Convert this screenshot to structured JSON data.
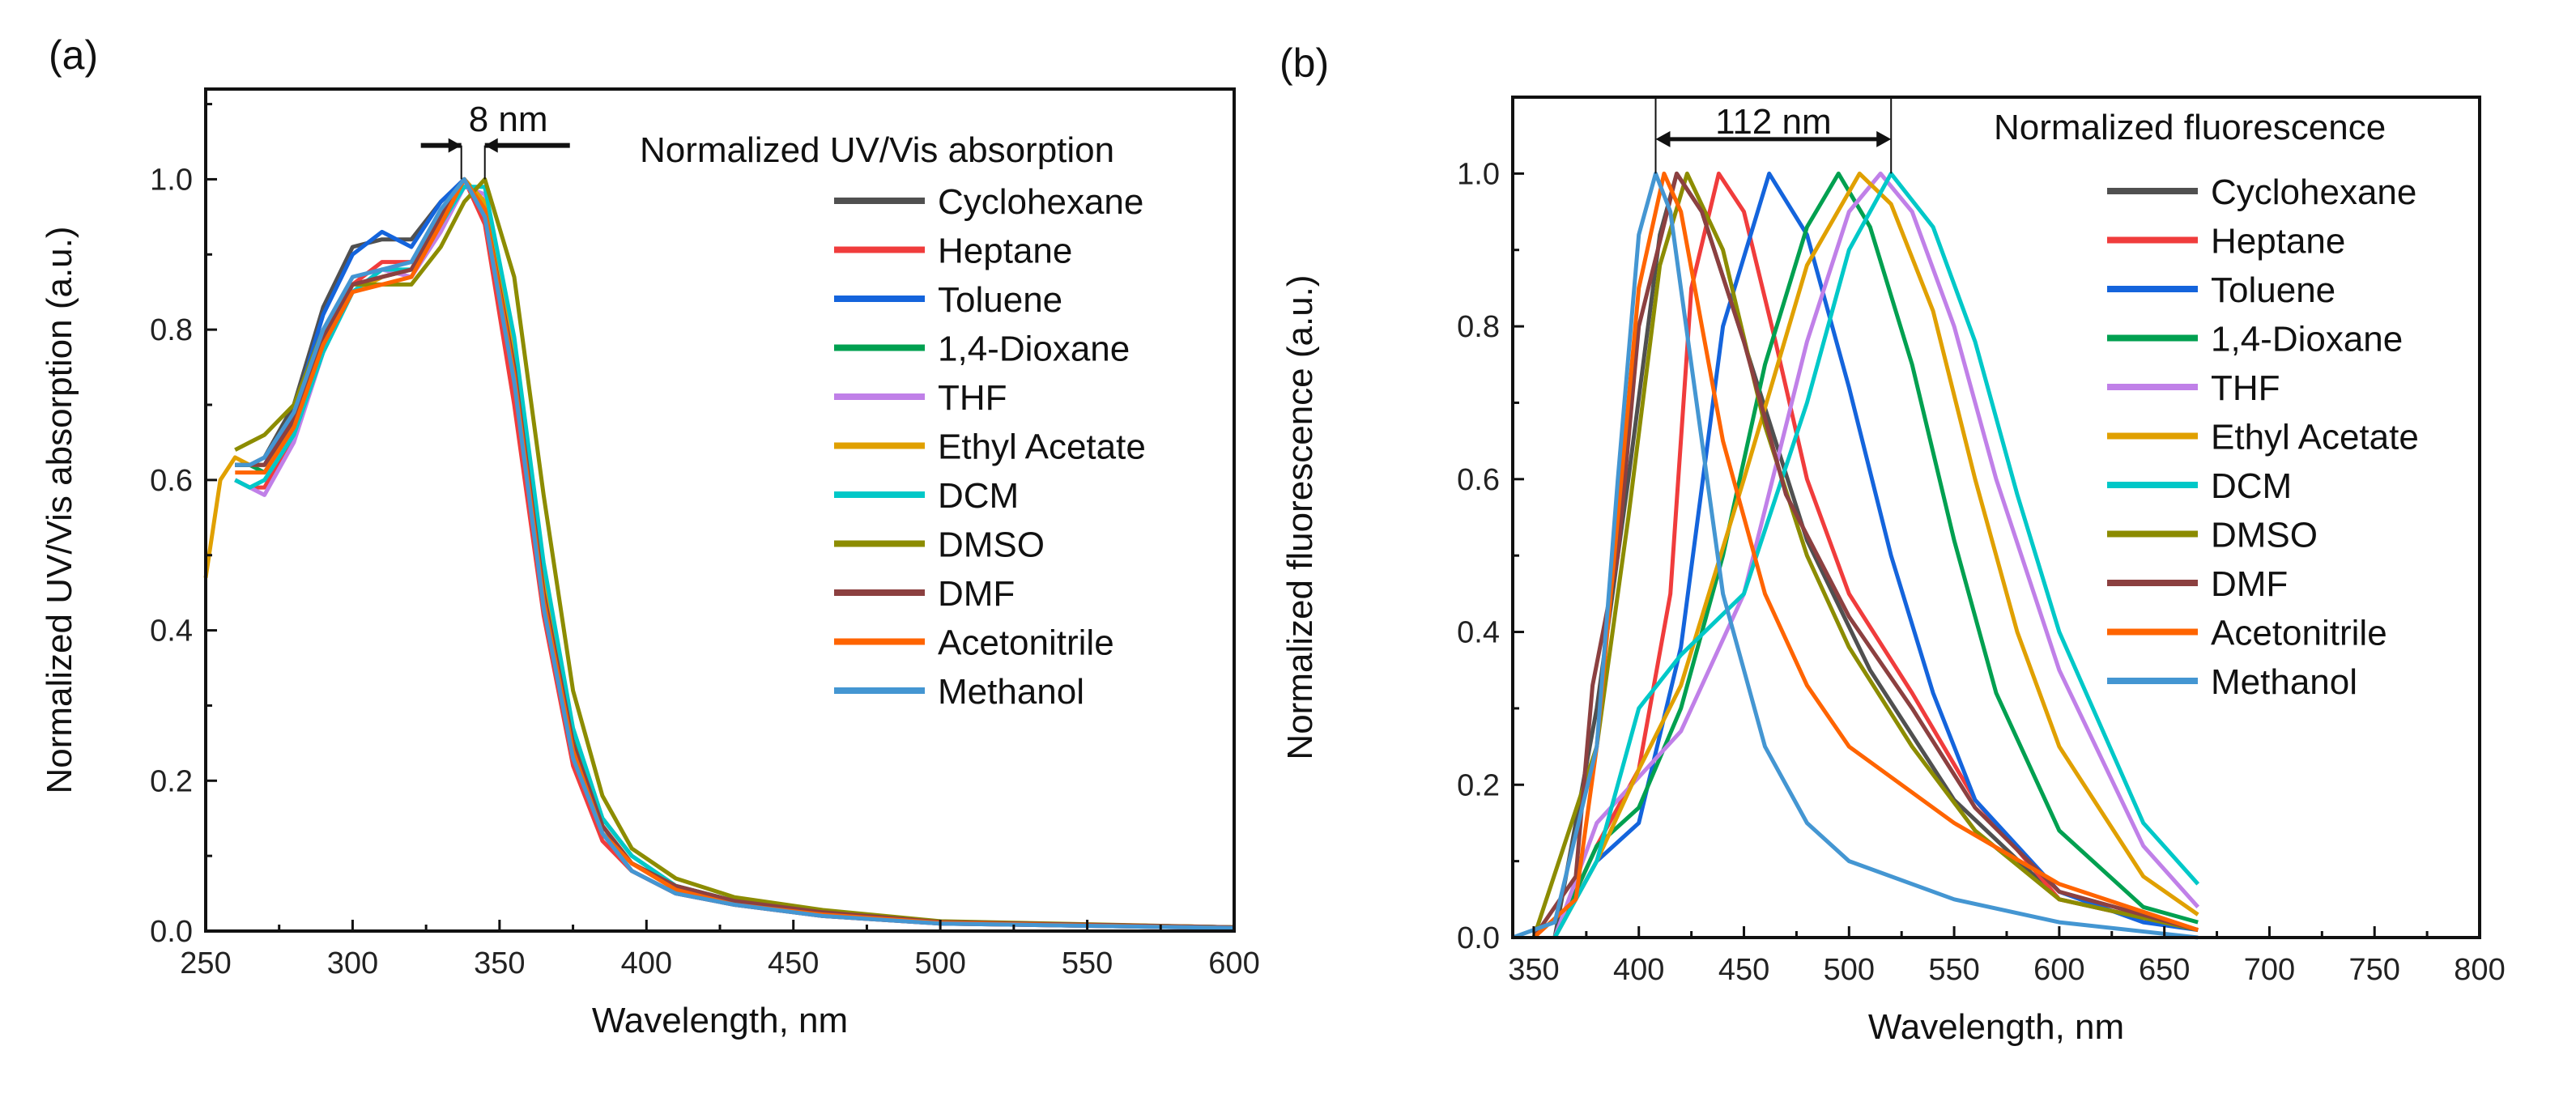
{
  "chart_data": [
    {
      "type": "line",
      "panel_label": "(a)",
      "title": "Normalized UV/Vis absorption",
      "xlabel": "Wavelength, nm",
      "ylabel": "Normalized UV/Vis absorption (a.u.)",
      "xlim": [
        250,
        600
      ],
      "ylim": [
        0,
        1.12
      ],
      "xticks": [
        250,
        300,
        350,
        400,
        450,
        500,
        550,
        600
      ],
      "yticks": [
        0.0,
        0.2,
        0.4,
        0.6,
        0.8,
        1.0
      ],
      "legend": "right",
      "annotation": {
        "text": "8 nm",
        "from": 337,
        "to": 345
      },
      "x": [
        260,
        265,
        270,
        280,
        290,
        300,
        310,
        320,
        330,
        338,
        345,
        355,
        365,
        375,
        385,
        395,
        410,
        430,
        460,
        500,
        600
      ],
      "series": [
        {
          "name": "Cyclohexane",
          "color": "#505050",
          "y": [
            0.62,
            0.62,
            0.63,
            0.7,
            0.83,
            0.91,
            0.92,
            0.92,
            0.97,
            1.0,
            0.95,
            0.72,
            0.43,
            0.23,
            0.13,
            0.08,
            0.05,
            0.035,
            0.02,
            0.01,
            0.004
          ]
        },
        {
          "name": "Heptane",
          "color": "#f03c3c",
          "y": [
            0.6,
            0.59,
            0.59,
            0.66,
            0.78,
            0.86,
            0.89,
            0.89,
            0.95,
            1.0,
            0.94,
            0.7,
            0.42,
            0.22,
            0.12,
            0.08,
            0.05,
            0.035,
            0.02,
            0.01,
            0.004
          ]
        },
        {
          "name": "Toluene",
          "color": "#1464dc",
          "y": [
            0.62,
            0.62,
            0.62,
            0.69,
            0.82,
            0.9,
            0.93,
            0.91,
            0.97,
            1.0,
            0.96,
            0.74,
            0.45,
            0.24,
            0.14,
            0.09,
            0.06,
            0.04,
            0.025,
            0.012,
            0.005
          ]
        },
        {
          "name": "1,4-Dioxane",
          "color": "#00a050",
          "y": [
            0.62,
            0.62,
            0.61,
            0.67,
            0.78,
            0.85,
            0.87,
            0.88,
            0.95,
            1.0,
            0.97,
            0.77,
            0.47,
            0.26,
            0.15,
            0.1,
            0.06,
            0.04,
            0.025,
            0.012,
            0.005
          ]
        },
        {
          "name": "THF",
          "color": "#c080e8",
          "y": [
            0.6,
            0.59,
            0.58,
            0.65,
            0.77,
            0.85,
            0.88,
            0.87,
            0.93,
            0.99,
            0.98,
            0.77,
            0.46,
            0.25,
            0.14,
            0.09,
            0.06,
            0.04,
            0.025,
            0.012,
            0.005
          ]
        },
        {
          "name": "Ethyl Acetate",
          "color": "#e0a000",
          "x": [
            250,
            255,
            260,
            265,
            270,
            280,
            290,
            300,
            310,
            320,
            330,
            338,
            345,
            355,
            365,
            375,
            385,
            395,
            410,
            430,
            460,
            500,
            600
          ],
          "y": [
            0.47,
            0.6,
            0.63,
            0.62,
            0.62,
            0.67,
            0.78,
            0.85,
            0.87,
            0.88,
            0.94,
            1.0,
            0.97,
            0.76,
            0.46,
            0.25,
            0.14,
            0.09,
            0.06,
            0.04,
            0.025,
            0.012,
            0.005
          ]
        },
        {
          "name": "DCM",
          "color": "#00c8c8",
          "y": [
            0.6,
            0.59,
            0.6,
            0.66,
            0.77,
            0.85,
            0.88,
            0.88,
            0.94,
            0.99,
            0.99,
            0.79,
            0.49,
            0.27,
            0.15,
            0.1,
            0.06,
            0.04,
            0.025,
            0.012,
            0.005
          ]
        },
        {
          "name": "DMSO",
          "color": "#8c8c00",
          "y": [
            0.64,
            0.65,
            0.66,
            0.7,
            0.8,
            0.86,
            0.86,
            0.86,
            0.91,
            0.97,
            1.0,
            0.87,
            0.58,
            0.32,
            0.18,
            0.11,
            0.07,
            0.045,
            0.028,
            0.013,
            0.005
          ]
        },
        {
          "name": "DMF",
          "color": "#8c4040",
          "y": [
            0.62,
            0.62,
            0.62,
            0.68,
            0.79,
            0.86,
            0.87,
            0.88,
            0.95,
            1.0,
            0.96,
            0.75,
            0.45,
            0.25,
            0.14,
            0.09,
            0.06,
            0.04,
            0.025,
            0.012,
            0.005
          ]
        },
        {
          "name": "Acetonitrile",
          "color": "#ff6400",
          "y": [
            0.61,
            0.61,
            0.61,
            0.67,
            0.78,
            0.85,
            0.86,
            0.87,
            0.94,
            1.0,
            0.96,
            0.74,
            0.44,
            0.24,
            0.13,
            0.09,
            0.055,
            0.035,
            0.022,
            0.011,
            0.004
          ]
        },
        {
          "name": "Methanol",
          "color": "#4496d2",
          "y": [
            0.62,
            0.62,
            0.63,
            0.69,
            0.8,
            0.87,
            0.88,
            0.89,
            0.96,
            1.0,
            0.95,
            0.73,
            0.43,
            0.23,
            0.13,
            0.08,
            0.05,
            0.035,
            0.02,
            0.01,
            0.004
          ]
        }
      ]
    },
    {
      "type": "line",
      "panel_label": "(b)",
      "title": "Normalized fluorescence",
      "xlabel": "Wavelength, nm",
      "ylabel": "Normalized fluorescence (a.u.)",
      "xlim": [
        340,
        800
      ],
      "ylim": [
        0,
        1.1
      ],
      "xticks": [
        350,
        400,
        450,
        500,
        550,
        600,
        650,
        700,
        750,
        800
      ],
      "yticks": [
        0.0,
        0.2,
        0.4,
        0.6,
        0.8,
        1.0
      ],
      "legend": "right",
      "annotation": {
        "text": "112 nm",
        "from": 408,
        "to": 520
      },
      "series": [
        {
          "name": "Cyclohexane",
          "color": "#505050",
          "x": [
            360,
            380,
            395,
            410,
            418,
            430,
            450,
            480,
            510,
            550,
            600,
            666
          ],
          "y": [
            0,
            0.3,
            0.6,
            0.92,
            1.0,
            0.95,
            0.78,
            0.52,
            0.35,
            0.18,
            0.05,
            0.01
          ]
        },
        {
          "name": "Heptane",
          "color": "#f03c3c",
          "x": [
            360,
            380,
            400,
            415,
            425,
            438,
            450,
            465,
            480,
            500,
            530,
            560,
            600,
            666
          ],
          "y": [
            0,
            0.12,
            0.22,
            0.45,
            0.85,
            1.0,
            0.95,
            0.78,
            0.6,
            0.45,
            0.32,
            0.18,
            0.05,
            0.01
          ]
        },
        {
          "name": "Toluene",
          "color": "#1464dc",
          "x": [
            360,
            380,
            400,
            420,
            440,
            462,
            480,
            500,
            520,
            540,
            560,
            600,
            640,
            666
          ],
          "y": [
            0,
            0.1,
            0.15,
            0.38,
            0.8,
            1.0,
            0.92,
            0.72,
            0.5,
            0.32,
            0.18,
            0.06,
            0.02,
            0.01
          ]
        },
        {
          "name": "1,4-Dioxane",
          "color": "#00a050",
          "x": [
            360,
            380,
            400,
            420,
            440,
            460,
            480,
            495,
            510,
            530,
            550,
            570,
            600,
            640,
            666
          ],
          "y": [
            0,
            0.12,
            0.17,
            0.3,
            0.5,
            0.75,
            0.93,
            1.0,
            0.93,
            0.75,
            0.52,
            0.32,
            0.14,
            0.04,
            0.02
          ]
        },
        {
          "name": "THF",
          "color": "#c080e8",
          "x": [
            360,
            380,
            400,
            420,
            450,
            480,
            500,
            515,
            530,
            550,
            570,
            600,
            640,
            666
          ],
          "y": [
            0,
            0.15,
            0.21,
            0.27,
            0.45,
            0.78,
            0.95,
            1.0,
            0.95,
            0.8,
            0.6,
            0.35,
            0.12,
            0.04
          ]
        },
        {
          "name": "Ethyl Acetate",
          "color": "#e0a000",
          "x": [
            360,
            380,
            400,
            420,
            450,
            480,
            505,
            520,
            540,
            560,
            580,
            600,
            640,
            666
          ],
          "y": [
            0,
            0.1,
            0.22,
            0.33,
            0.6,
            0.88,
            1.0,
            0.96,
            0.82,
            0.6,
            0.4,
            0.25,
            0.08,
            0.03
          ]
        },
        {
          "name": "DCM",
          "color": "#00c8c8",
          "x": [
            360,
            380,
            400,
            420,
            450,
            480,
            500,
            520,
            540,
            560,
            580,
            600,
            640,
            666
          ],
          "y": [
            0,
            0.1,
            0.3,
            0.37,
            0.45,
            0.7,
            0.9,
            1.0,
            0.93,
            0.78,
            0.58,
            0.4,
            0.15,
            0.07
          ]
        },
        {
          "name": "DMSO",
          "color": "#8c8c00",
          "x": [
            350,
            380,
            395,
            410,
            423,
            440,
            460,
            480,
            500,
            530,
            560,
            600,
            666
          ],
          "y": [
            0,
            0.25,
            0.55,
            0.88,
            1.0,
            0.9,
            0.67,
            0.5,
            0.38,
            0.25,
            0.14,
            0.05,
            0.01
          ]
        },
        {
          "name": "DMF",
          "color": "#8c4040",
          "x": [
            350,
            370,
            378,
            390,
            400,
            418,
            430,
            450,
            470,
            500,
            530,
            560,
            600,
            666
          ],
          "y": [
            0,
            0.08,
            0.33,
            0.5,
            0.8,
            1.0,
            0.95,
            0.78,
            0.58,
            0.42,
            0.3,
            0.17,
            0.06,
            0.01
          ]
        },
        {
          "name": "Acetonitrile",
          "color": "#ff6400",
          "x": [
            350,
            370,
            380,
            390,
            400,
            412,
            420,
            430,
            440,
            460,
            480,
            500,
            550,
            600,
            666
          ],
          "y": [
            0,
            0.05,
            0.25,
            0.55,
            0.85,
            1.0,
            0.95,
            0.8,
            0.65,
            0.45,
            0.33,
            0.25,
            0.15,
            0.07,
            0.01
          ]
        },
        {
          "name": "Methanol",
          "color": "#4496d2",
          "x": [
            340,
            360,
            380,
            390,
            400,
            408,
            415,
            425,
            440,
            460,
            480,
            500,
            550,
            600,
            666
          ],
          "y": [
            0,
            0.02,
            0.25,
            0.6,
            0.92,
            1.0,
            0.95,
            0.75,
            0.45,
            0.25,
            0.15,
            0.1,
            0.05,
            0.02,
            0.0
          ]
        }
      ]
    }
  ]
}
